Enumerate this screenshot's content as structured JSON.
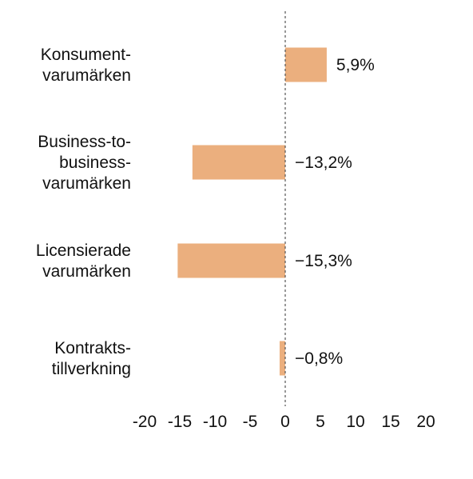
{
  "chart_data": {
    "type": "bar",
    "orientation": "horizontal",
    "categories": [
      [
        "Konsument-",
        "varumärken"
      ],
      [
        "Business-to-",
        "business-",
        "varumärken"
      ],
      [
        "Licensierade",
        "varumärken"
      ],
      [
        "Kontrakts-",
        "tillverkning"
      ]
    ],
    "values": [
      5.9,
      -13.2,
      -15.3,
      -0.8
    ],
    "value_labels": [
      "5,9%",
      "−13,2%",
      "−15,3%",
      "−0,8%"
    ],
    "xlim": [
      -20,
      20
    ],
    "xticks": [
      -20,
      -15,
      -10,
      -5,
      0,
      5,
      10,
      15,
      20
    ],
    "xtick_labels": [
      "-20",
      "-15",
      "-10",
      "-5",
      "0",
      "5",
      "10",
      "15",
      "20"
    ],
    "grid": false,
    "zero_line": "dashed",
    "bar_color": "#ebaf7e",
    "axis_color": "#555555"
  }
}
